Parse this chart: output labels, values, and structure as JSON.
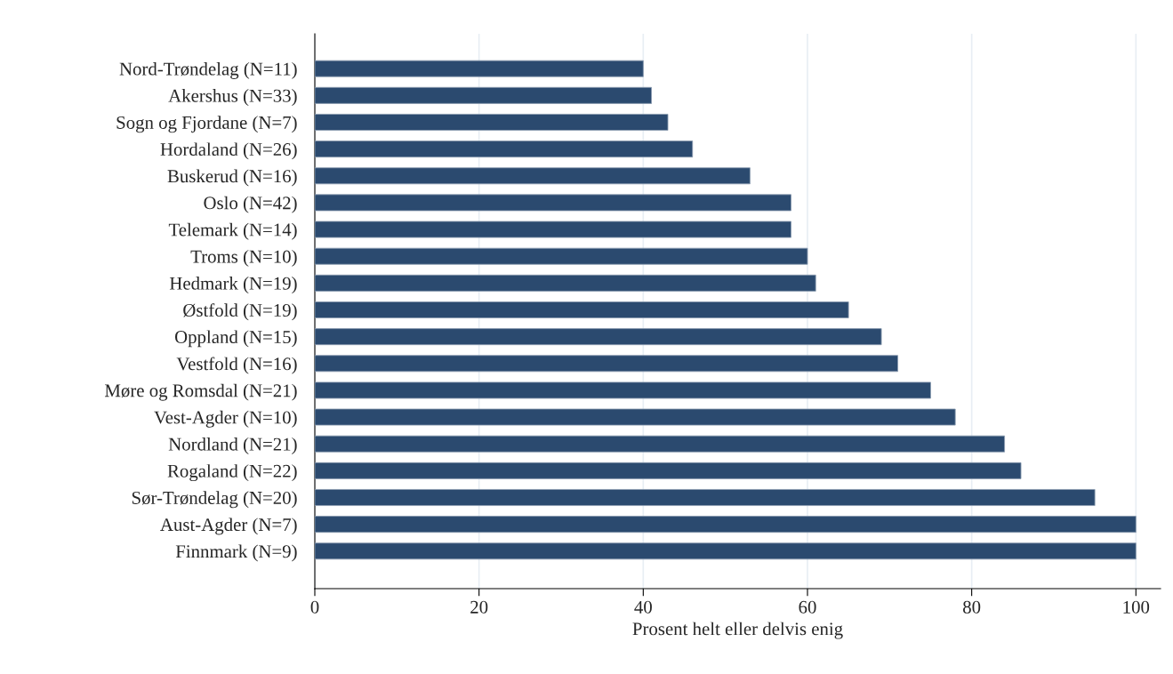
{
  "chart_data": {
    "type": "bar",
    "orientation": "horizontal",
    "xlabel": "Prosent helt eller delvis enig",
    "categories": [
      "Nord-Trøndelag (N=11)",
      "Akershus (N=33)",
      "Sogn og Fjordane (N=7)",
      "Hordaland (N=26)",
      "Buskerud (N=16)",
      "Oslo (N=42)",
      "Telemark (N=14)",
      "Troms (N=10)",
      "Hedmark (N=19)",
      "Østfold (N=19)",
      "Oppland (N=15)",
      "Vestfold (N=16)",
      "Møre og Romsdal (N=21)",
      "Vest-Agder (N=10)",
      "Nordland (N=21)",
      "Rogaland (N=22)",
      "Sør-Trøndelag (N=20)",
      "Aust-Agder (N=7)",
      "Finnmark (N=9)"
    ],
    "values": [
      40,
      41,
      43,
      46,
      53,
      58,
      58,
      60,
      61,
      65,
      69,
      71,
      75,
      78,
      84,
      86,
      95,
      100,
      100
    ],
    "color": "#2b4a6f",
    "xlim": [
      0,
      103
    ],
    "xticks": [
      0,
      20,
      40,
      60,
      80,
      100
    ],
    "grid": "x",
    "legend": false
  }
}
